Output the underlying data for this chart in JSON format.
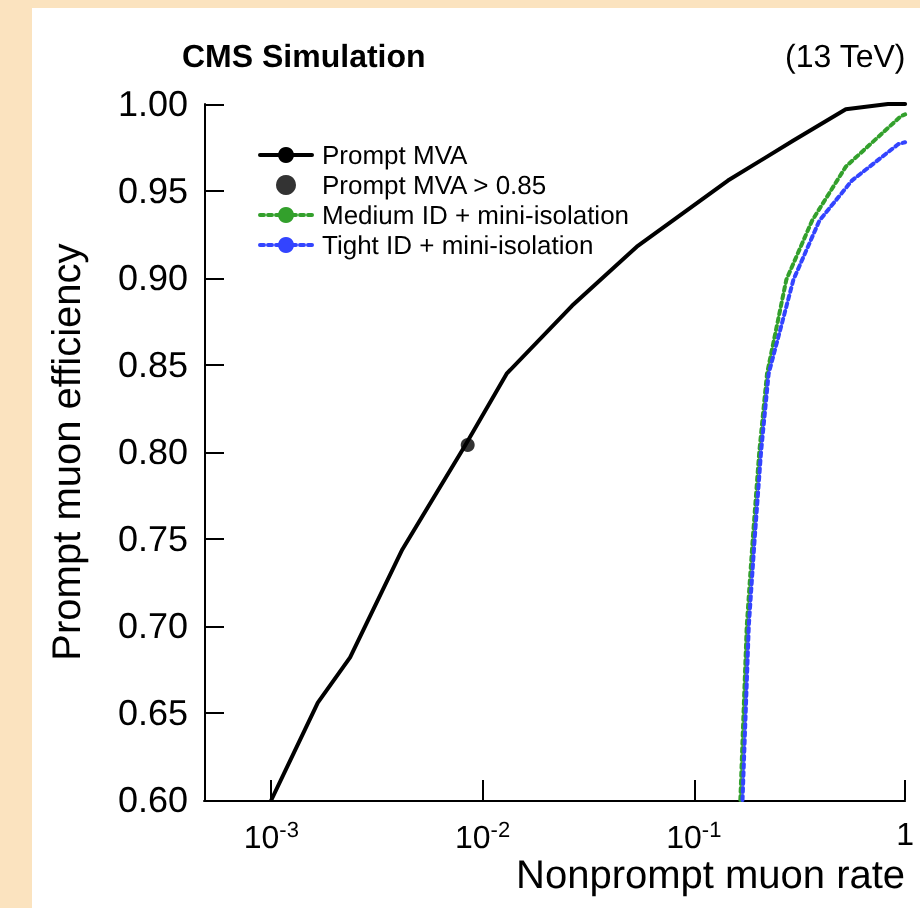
{
  "chart_data": {
    "type": "line",
    "title": "CMS Simulation",
    "annotations": [
      "(13 TeV)"
    ],
    "xlabel": "Nonprompt muon rate",
    "ylabel": "Prompt muon efficiency",
    "log": "x",
    "xlim": [
      0.00048,
      1
    ],
    "ylim": [
      0.6,
      1.0
    ],
    "xticks": [
      {
        "value": 0.001,
        "label": "10$^{-3}$"
      },
      {
        "value": 0.01,
        "label": "10$^{-2}$"
      },
      {
        "value": 0.1,
        "label": "10$^{-1}$"
      },
      1
    ],
    "yticks": [
      {
        "value": 0.6,
        "label": "0.60"
      },
      {
        "value": 0.65,
        "label": "0.65"
      },
      {
        "value": 0.7,
        "label": "0.70"
      },
      {
        "value": 0.75,
        "label": "0.75"
      },
      {
        "value": 0.8,
        "label": "0.80"
      },
      {
        "value": 0.85,
        "label": "0.85"
      },
      {
        "value": 0.9,
        "label": "0.90"
      },
      {
        "value": 0.95,
        "label": "0.95"
      },
      {
        "value": 1.0,
        "label": "1.00"
      }
    ],
    "grid": false,
    "legend": "top left",
    "marker": "none",
    "series": [
      {
        "name": "Prompt MVA",
        "color": "#000000",
        "line_style": "solid",
        "x": [
          0.001,
          0.00166,
          0.00236,
          0.00417,
          0.0082,
          0.013,
          0.0265,
          0.0537,
          0.145,
          0.296,
          0.524,
          0.83,
          1
        ],
        "values": [
          0.6,
          0.656,
          0.682,
          0.744,
          0.803,
          0.845,
          0.884,
          0.918,
          0.956,
          0.979,
          0.997,
          1.0,
          1.0
        ]
      },
      {
        "name": "Prompt MVA > 0.85",
        "type": "scatter",
        "marker": "circle",
        "color": "#000000",
        "x": [
          0.0085
        ],
        "values": [
          0.804
        ]
      },
      {
        "name": "Medium ID + mini-isolation",
        "color": "#33a02c",
        "line_style": "dotted",
        "x": [
          0.166,
          0.178,
          0.19,
          0.204,
          0.222,
          0.274,
          0.363,
          0.524,
          0.955,
          1
        ],
        "values": [
          0.6,
          0.7,
          0.75,
          0.8,
          0.845,
          0.899,
          0.933,
          0.964,
          0.993,
          0.994
        ]
      },
      {
        "name": "Tight ID + mini-isolation",
        "color": "#3344ff",
        "line_style": "dotted",
        "x": [
          0.17,
          0.182,
          0.194,
          0.208,
          0.226,
          0.296,
          0.393,
          0.56,
          0.93,
          1
        ],
        "values": [
          0.6,
          0.7,
          0.75,
          0.8,
          0.845,
          0.899,
          0.933,
          0.956,
          0.977,
          0.978
        ]
      }
    ]
  }
}
